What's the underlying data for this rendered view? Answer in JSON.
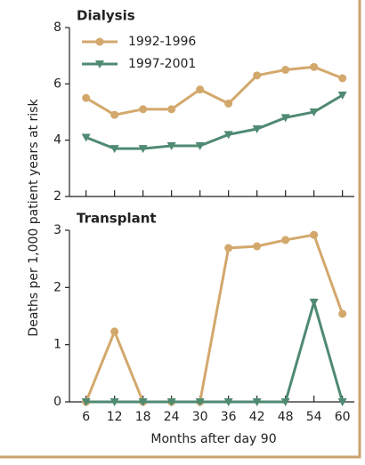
{
  "chart_data": [
    {
      "type": "line",
      "title": "Dialysis",
      "ylabel": "Deaths per 1,000 patient years at risk",
      "x": [
        6,
        12,
        18,
        24,
        30,
        36,
        42,
        48,
        54,
        60
      ],
      "series": [
        {
          "name": "1992-1996",
          "color": "#d3a86c",
          "marker": "circle",
          "values": [
            5.5,
            4.9,
            5.1,
            5.1,
            5.8,
            5.3,
            6.3,
            6.5,
            6.6,
            6.2
          ]
        },
        {
          "name": "1997-2001",
          "color": "#4f8a72",
          "marker": "triangle-down",
          "values": [
            4.1,
            3.7,
            3.7,
            3.8,
            3.8,
            4.2,
            4.4,
            4.8,
            5.0,
            5.6
          ]
        }
      ],
      "xlim": [
        2.5,
        62.5
      ],
      "xticks": [
        6,
        12,
        18,
        24,
        30,
        36,
        42,
        48,
        54,
        60
      ],
      "ylim": [
        2,
        8
      ],
      "yticks": [
        2,
        4,
        6,
        8
      ],
      "legend": "upper-left"
    },
    {
      "type": "line",
      "title": "Transplant",
      "xlabel": "Months after day 90",
      "x": [
        6,
        12,
        18,
        24,
        30,
        36,
        42,
        48,
        54,
        60
      ],
      "series": [
        {
          "name": "1992-1996",
          "color": "#d3a86c",
          "marker": "circle",
          "values": [
            0,
            1.23,
            0,
            0,
            0,
            2.69,
            2.72,
            2.83,
            2.92,
            1.54
          ]
        },
        {
          "name": "1997-2001",
          "color": "#4f8a72",
          "marker": "triangle-down",
          "values": [
            0,
            0,
            0,
            0,
            0,
            0,
            0,
            0,
            1.74,
            0
          ]
        }
      ],
      "xlim": [
        2.5,
        62.5
      ],
      "xticks": [
        6,
        12,
        18,
        24,
        30,
        36,
        42,
        48,
        54,
        60
      ],
      "ylim": [
        0,
        3
      ],
      "yticks": [
        0,
        1,
        2,
        3
      ]
    }
  ]
}
